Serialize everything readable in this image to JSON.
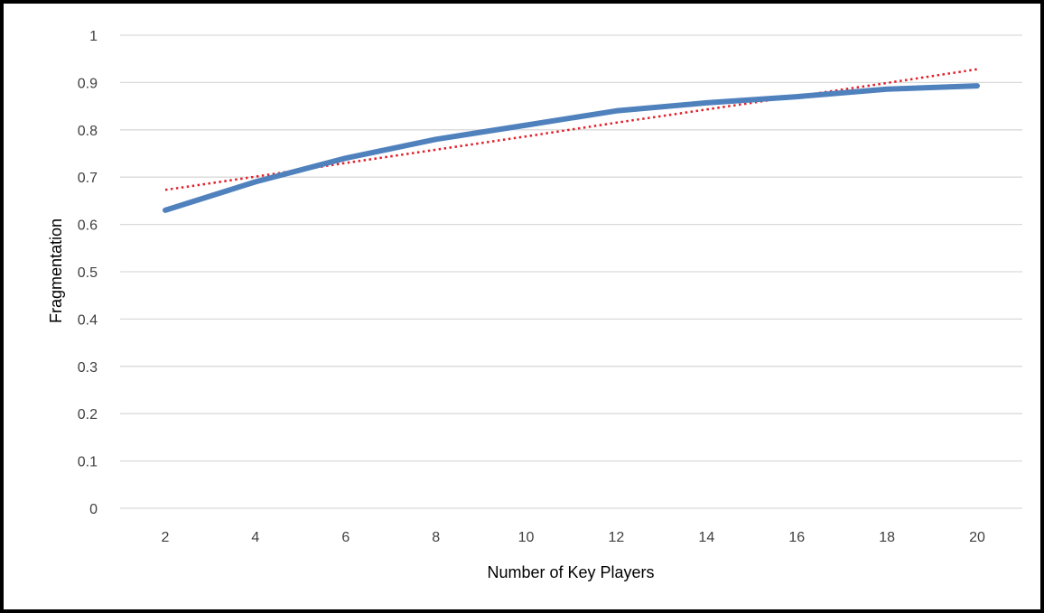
{
  "chart_data": {
    "type": "line",
    "title": "",
    "xlabel": "Number of Key Players",
    "ylabel": "Fragmentation",
    "x": [
      2,
      4,
      6,
      8,
      10,
      12,
      14,
      16,
      18,
      20
    ],
    "xticks": [
      "2",
      "4",
      "6",
      "8",
      "10",
      "12",
      "14",
      "16",
      "18",
      "20"
    ],
    "yticks": [
      "0",
      "0.1",
      "0.2",
      "0.3",
      "0.4",
      "0.5",
      "0.6",
      "0.7",
      "0.8",
      "0.9",
      "1"
    ],
    "ylim": [
      0,
      1
    ],
    "grid": true,
    "series": [
      {
        "color": "#4f81bd",
        "style": "solid",
        "values": [
          0.63,
          0.69,
          0.74,
          0.78,
          0.81,
          0.84,
          0.857,
          0.87,
          0.886,
          0.893
        ]
      },
      {
        "color": "#e0202a",
        "style": "dotted",
        "trendline": "linear",
        "values": [
          0.673,
          0.701,
          0.73,
          0.758,
          0.786,
          0.815,
          0.843,
          0.871,
          0.899,
          0.928
        ]
      }
    ]
  }
}
